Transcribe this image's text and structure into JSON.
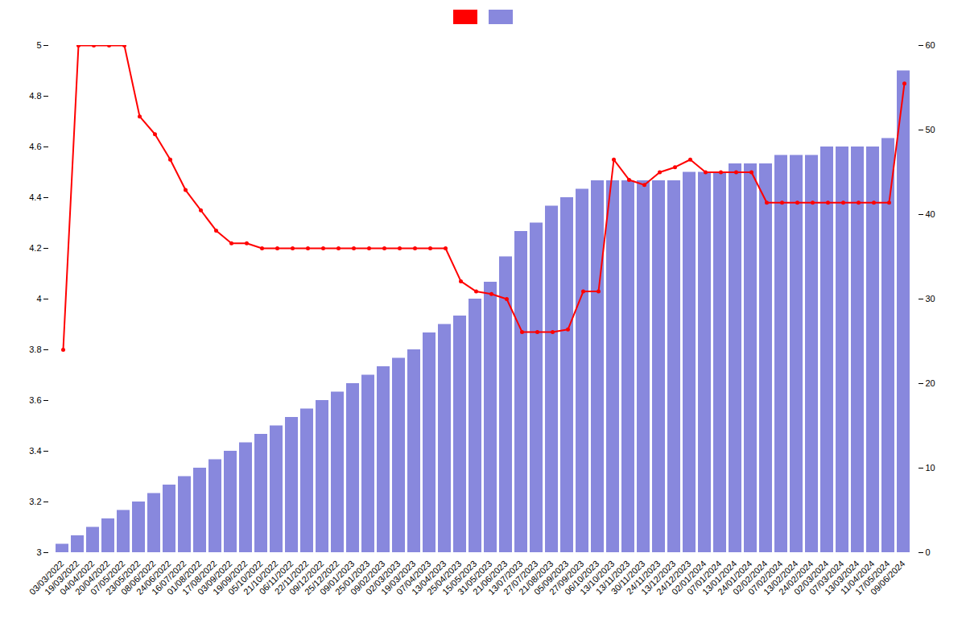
{
  "chart_data": {
    "type": "bar",
    "categories": [
      "03/03/2022",
      "19/03/2022",
      "04/04/2022",
      "20/04/2022",
      "07/05/2022",
      "23/05/2022",
      "08/06/2022",
      "24/06/2022",
      "16/07/2022",
      "01/08/2022",
      "17/08/2022",
      "03/09/2022",
      "19/09/2022",
      "05/10/2022",
      "21/10/2022",
      "06/11/2022",
      "22/11/2022",
      "09/12/2022",
      "25/12/2022",
      "09/01/2023",
      "25/01/2023",
      "09/02/2023",
      "02/03/2023",
      "19/03/2023",
      "07/04/2023",
      "13/04/2023",
      "25/04/2023",
      "15/05/2023",
      "31/05/2023",
      "21/06/2023",
      "13/07/2023",
      "27/07/2023",
      "21/08/2023",
      "05/09/2023",
      "27/09/2023",
      "06/10/2023",
      "13/10/2023",
      "13/11/2023",
      "30/11/2023",
      "24/11/2023",
      "13/12/2023",
      "24/12/2023",
      "02/01/2024",
      "07/01/2024",
      "13/01/2024",
      "24/01/2024",
      "02/02/2024",
      "07/02/2024",
      "13/02/2024",
      "24/02/2024",
      "02/03/2024",
      "07/03/2024",
      "13/03/2024",
      "11/04/2024",
      "17/05/2024",
      "09/06/2024"
    ],
    "series": [
      {
        "type": "bar",
        "color": "#8888dd",
        "axis": "y2",
        "values": [
          1,
          2,
          3,
          4,
          5,
          6,
          7,
          8,
          9,
          10,
          11,
          12,
          13,
          14,
          15,
          16,
          17,
          18,
          19,
          20,
          21,
          22,
          23,
          24,
          26,
          27,
          28,
          30,
          32,
          35,
          38,
          39,
          41,
          42,
          43,
          44,
          44,
          44,
          44,
          44,
          44,
          45,
          45,
          45,
          46,
          46,
          46,
          47,
          47,
          47,
          48,
          48,
          48,
          48,
          49,
          57
        ]
      },
      {
        "type": "line",
        "color": "#ff0000",
        "marker": "o",
        "values": [
          3.8,
          5.0,
          5.0,
          5.0,
          5.0,
          4.72,
          4.65,
          4.55,
          4.43,
          4.35,
          4.27,
          4.22,
          4.22,
          4.2,
          4.2,
          4.2,
          4.2,
          4.2,
          4.2,
          4.2,
          4.2,
          4.2,
          4.2,
          4.2,
          4.2,
          4.2,
          4.07,
          4.03,
          4.02,
          4.0,
          3.87,
          3.87,
          3.87,
          3.88,
          4.03,
          4.03,
          4.55,
          4.47,
          4.45,
          4.5,
          4.52,
          4.55,
          4.5,
          4.5,
          4.5,
          4.5,
          4.38,
          4.38,
          4.38,
          4.38,
          4.38,
          4.38,
          4.38,
          4.38,
          4.38,
          4.85
        ]
      }
    ],
    "ylim": [
      3.0,
      5.0
    ],
    "yticks": [
      3.0,
      3.2,
      3.4,
      3.6,
      3.8,
      4.0,
      4.2,
      4.4,
      4.6,
      4.8,
      5.0
    ],
    "y2lim": [
      0,
      60
    ],
    "y2ticks": [
      0,
      10,
      20,
      30,
      40,
      50,
      60
    ],
    "grid": false,
    "legend": "top"
  }
}
